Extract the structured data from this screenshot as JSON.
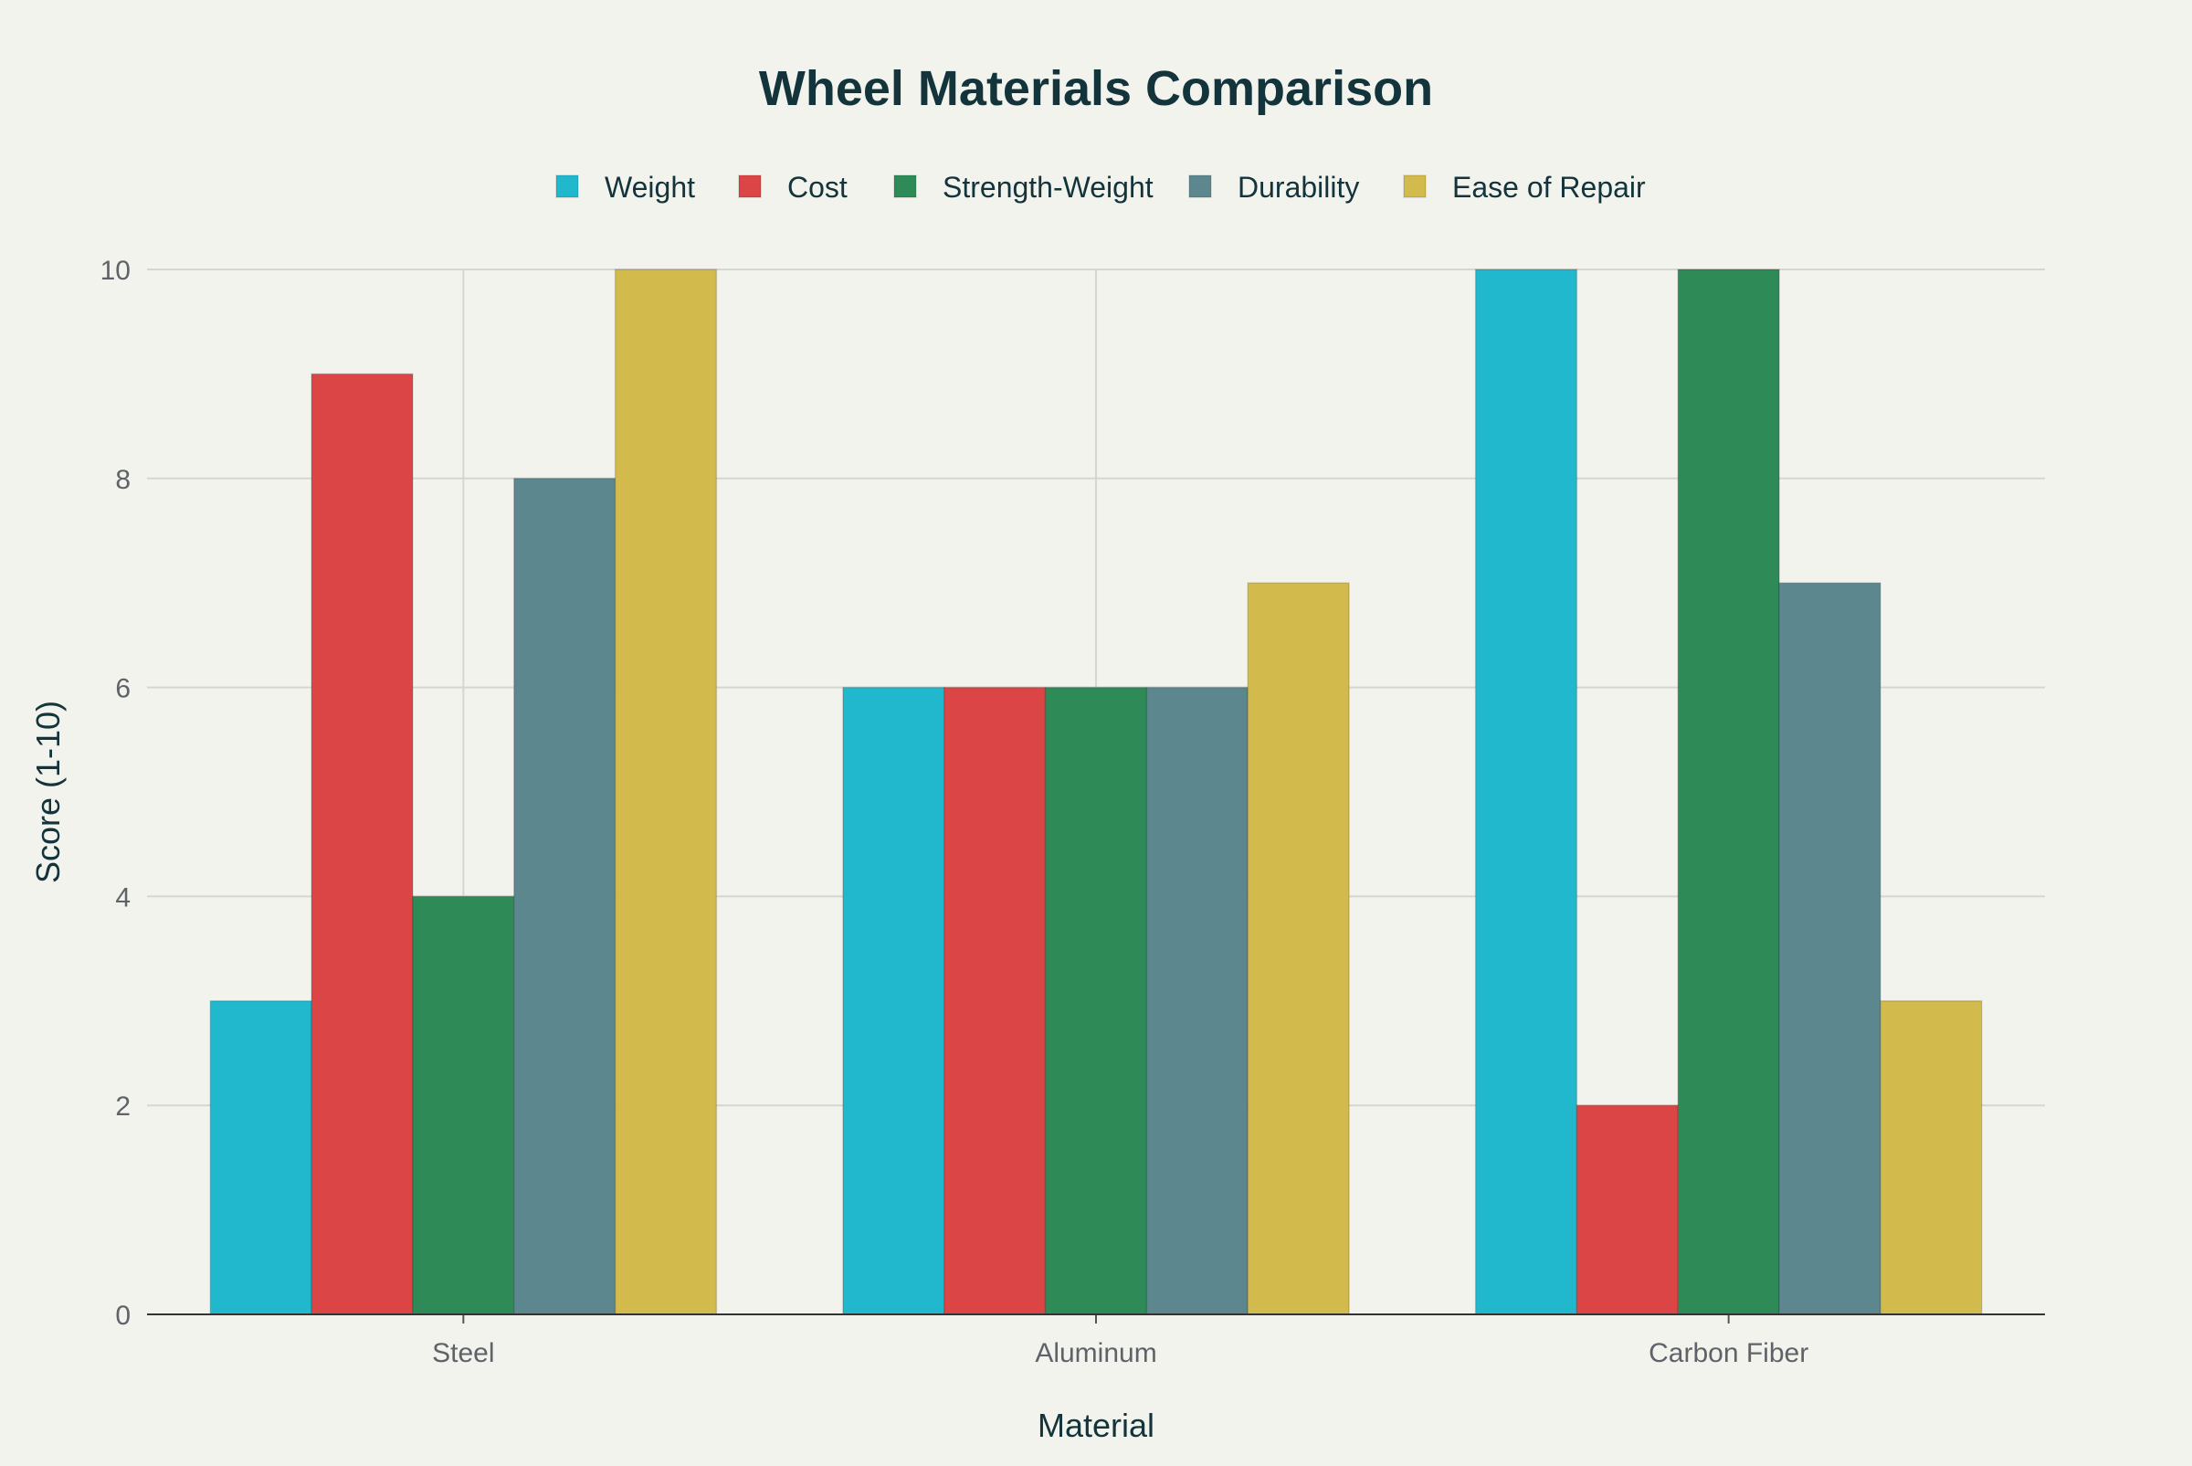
{
  "chart_data": {
    "type": "bar",
    "title": "Wheel Materials Comparison",
    "xlabel": "Material",
    "ylabel": "Score (1-10)",
    "categories": [
      "Steel",
      "Aluminum",
      "Carbon Fiber"
    ],
    "ylim": [
      0,
      10
    ],
    "yticks": [
      0,
      2,
      4,
      6,
      8,
      10
    ],
    "grid": true,
    "legend_position": "top-center",
    "series": [
      {
        "name": "Weight",
        "color": "#21B8CD",
        "values": [
          3,
          6,
          10
        ]
      },
      {
        "name": "Cost",
        "color": "#DB4545",
        "values": [
          9,
          6,
          2
        ]
      },
      {
        "name": "Strength-Weight",
        "color": "#2E8B57",
        "values": [
          4,
          6,
          10
        ]
      },
      {
        "name": "Durability",
        "color": "#5D878F",
        "values": [
          8,
          6,
          7
        ]
      },
      {
        "name": "Ease of Repair",
        "color": "#D2BA4C",
        "values": [
          10,
          7,
          3
        ]
      }
    ]
  }
}
